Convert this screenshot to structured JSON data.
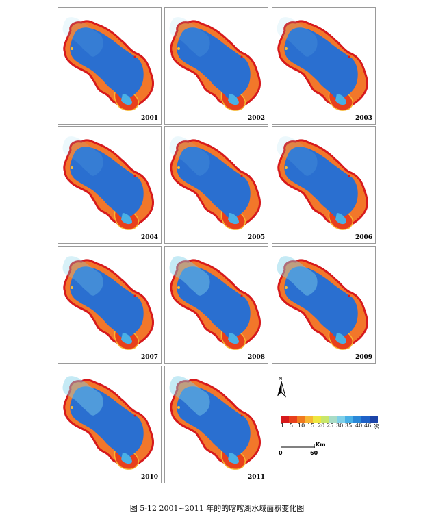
{
  "panels": [
    {
      "year": "2001"
    },
    {
      "year": "2002"
    },
    {
      "year": "2003"
    },
    {
      "year": "2004"
    },
    {
      "year": "2005"
    },
    {
      "year": "2006"
    },
    {
      "year": "2007"
    },
    {
      "year": "2008"
    },
    {
      "year": "2009"
    },
    {
      "year": "2010"
    },
    {
      "year": "2011"
    }
  ],
  "north_arrow": {
    "label": "N"
  },
  "legend": {
    "colors": [
      "#d7191c",
      "#e8401c",
      "#f07a1f",
      "#f7b733",
      "#eee640",
      "#c8e66a",
      "#a9dcc6",
      "#7fd0e8",
      "#49b0e6",
      "#2a88d8",
      "#1f62c8",
      "#1c44a8"
    ],
    "labels": [
      "1",
      "5",
      "10",
      "15",
      "20",
      "25",
      "30",
      "35",
      "40",
      "46",
      "次"
    ]
  },
  "scale_bar": {
    "unit": "Km",
    "start": "0",
    "end": "60"
  },
  "caption": "图 5-12  2001~2011 年的的喀喀湖水域面积变化图"
}
